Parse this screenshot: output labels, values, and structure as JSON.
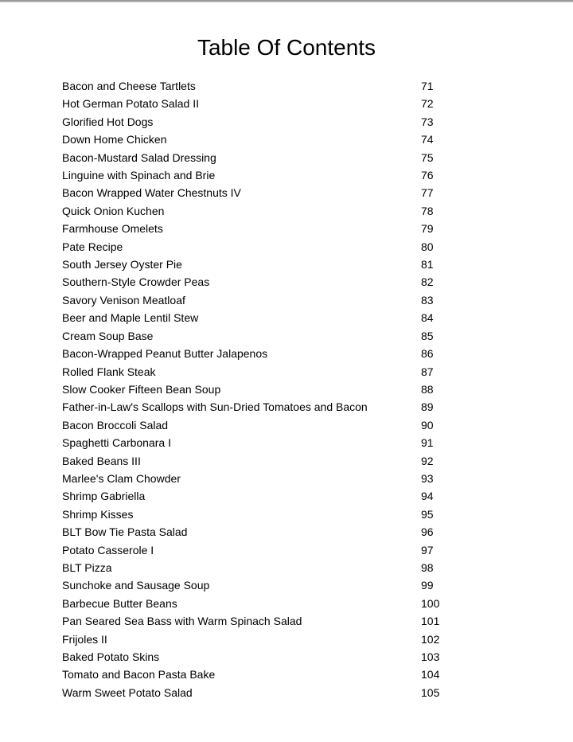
{
  "title": "Table Of Contents",
  "entries": [
    {
      "title": "Bacon and Cheese Tartlets",
      "page": "71"
    },
    {
      "title": "Hot German Potato Salad II",
      "page": "72"
    },
    {
      "title": "Glorified Hot Dogs",
      "page": "73"
    },
    {
      "title": "Down Home Chicken",
      "page": "74"
    },
    {
      "title": "Bacon-Mustard Salad Dressing",
      "page": "75"
    },
    {
      "title": "Linguine with Spinach and Brie",
      "page": "76"
    },
    {
      "title": "Bacon Wrapped Water Chestnuts IV",
      "page": "77"
    },
    {
      "title": "Quick Onion Kuchen",
      "page": "78"
    },
    {
      "title": "Farmhouse Omelets",
      "page": "79"
    },
    {
      "title": "Pate Recipe",
      "page": "80"
    },
    {
      "title": "South Jersey Oyster Pie",
      "page": "81"
    },
    {
      "title": "Southern-Style Crowder Peas",
      "page": "82"
    },
    {
      "title": "Savory Venison Meatloaf",
      "page": "83"
    },
    {
      "title": "Beer and Maple Lentil Stew",
      "page": "84"
    },
    {
      "title": "Cream Soup Base",
      "page": "85"
    },
    {
      "title": "Bacon-Wrapped Peanut Butter Jalapenos",
      "page": "86"
    },
    {
      "title": "Rolled Flank Steak",
      "page": "87"
    },
    {
      "title": "Slow Cooker Fifteen Bean Soup",
      "page": "88"
    },
    {
      "title": "Father-in-Law's Scallops with Sun-Dried Tomatoes and Bacon",
      "page": "89"
    },
    {
      "title": "Bacon Broccoli Salad",
      "page": "90"
    },
    {
      "title": "Spaghetti Carbonara I",
      "page": "91"
    },
    {
      "title": "Baked Beans III",
      "page": "92"
    },
    {
      "title": "Marlee's Clam Chowder",
      "page": "93"
    },
    {
      "title": "Shrimp Gabriella",
      "page": "94"
    },
    {
      "title": "Shrimp Kisses",
      "page": "95"
    },
    {
      "title": "BLT Bow Tie Pasta Salad",
      "page": "96"
    },
    {
      "title": "Potato Casserole I",
      "page": "97"
    },
    {
      "title": "BLT Pizza",
      "page": "98"
    },
    {
      "title": "Sunchoke and Sausage Soup",
      "page": "99"
    },
    {
      "title": "Barbecue Butter Beans",
      "page": "100"
    },
    {
      "title": "Pan Seared Sea Bass with Warm Spinach Salad",
      "page": "101"
    },
    {
      "title": "Frijoles II",
      "page": "102"
    },
    {
      "title": "Baked Potato Skins",
      "page": "103"
    },
    {
      "title": "Tomato and Bacon Pasta Bake",
      "page": "104"
    },
    {
      "title": "Warm Sweet Potato Salad",
      "page": "105"
    }
  ]
}
